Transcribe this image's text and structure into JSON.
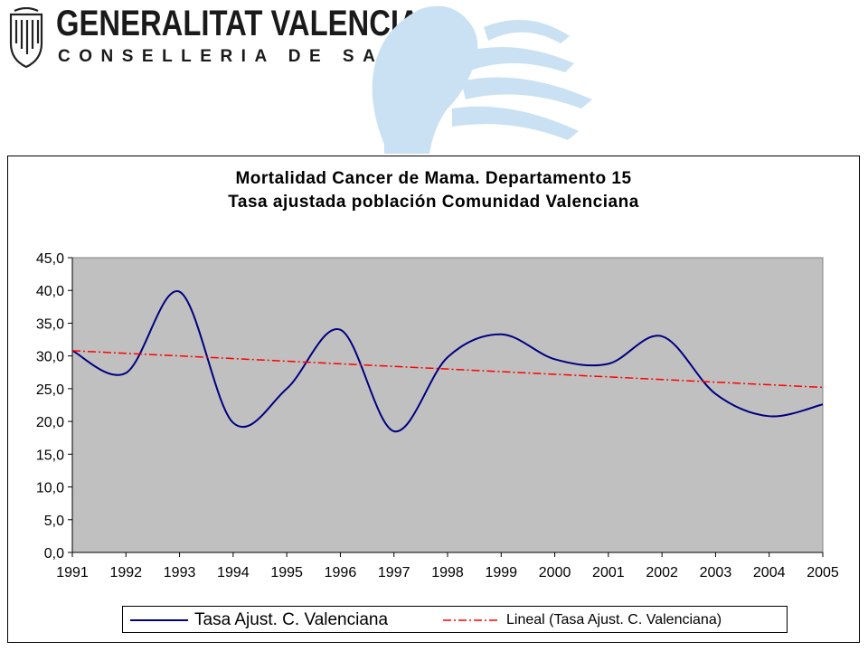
{
  "header": {
    "title": "GENERALITAT VALENCIANA",
    "subtitle": "CONSELLERIA DE SANITAT"
  },
  "colors": {
    "plot_background": "#c0c0c0",
    "series_line": "#000080",
    "trend_line": "#ff0000",
    "watermark": "#c9e1f3"
  },
  "chart_data": {
    "type": "line",
    "title": "Mortalidad Cancer de Mama. Departamento 15",
    "subtitle": "Tasa ajustada población Comunidad Valenciana",
    "xlabel": "",
    "ylabel": "",
    "categories": [
      "1991",
      "1992",
      "1993",
      "1994",
      "1995",
      "1996",
      "1997",
      "1998",
      "1999",
      "2000",
      "2001",
      "2002",
      "2003",
      "2004",
      "2005"
    ],
    "y_ticks": [
      "0,0",
      "5,0",
      "10,0",
      "15,0",
      "20,0",
      "25,0",
      "30,0",
      "35,0",
      "40,0",
      "45,0"
    ],
    "ylim": [
      0,
      45
    ],
    "grid": false,
    "legend_position": "bottom",
    "series": [
      {
        "name": "Tasa Ajust. C. Valenciana",
        "style": "solid",
        "smooth": true,
        "values": [
          30.8,
          27.4,
          39.8,
          19.8,
          25.0,
          34.0,
          18.5,
          29.8,
          33.3,
          29.5,
          28.8,
          33.0,
          24.2,
          20.8,
          22.6
        ]
      },
      {
        "name": "Lineal (Tasa Ajust. C. Valenciana)",
        "style": "dash-dot",
        "values": [
          30.8,
          30.4,
          30.0,
          29.6,
          29.2,
          28.8,
          28.4,
          28.0,
          27.6,
          27.2,
          26.8,
          26.4,
          26.0,
          25.6,
          25.2
        ]
      }
    ]
  }
}
